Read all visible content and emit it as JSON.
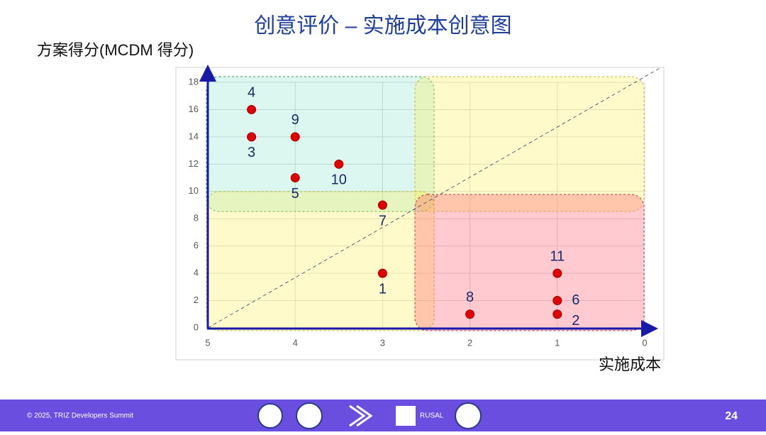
{
  "chart_data": {
    "type": "scatter",
    "title": "创意评价 – 实施成本创意图",
    "y_label": "方案得分(MCDM 得分)",
    "x_label": "实施成本",
    "xlim": [
      5,
      0
    ],
    "xticks": [
      5,
      4,
      3,
      2,
      1,
      0
    ],
    "ylim": [
      0,
      18
    ],
    "yticks": [
      0,
      2,
      4,
      6,
      8,
      10,
      12,
      14,
      16,
      18
    ],
    "grid": true,
    "color": "#e00000",
    "points": [
      {
        "label": "4",
        "x": 4.5,
        "y": 16,
        "label_position": "above"
      },
      {
        "label": "3",
        "x": 4.5,
        "y": 14,
        "label_position": "below"
      },
      {
        "label": "9",
        "x": 4,
        "y": 14,
        "label_position": "above"
      },
      {
        "label": "5",
        "x": 4,
        "y": 11,
        "label_position": "below"
      },
      {
        "label": "10",
        "x": 3.5,
        "y": 12,
        "label_position": "below"
      },
      {
        "label": "7",
        "x": 3,
        "y": 9,
        "label_position": "below"
      },
      {
        "label": "1",
        "x": 3,
        "y": 4,
        "label_position": "below"
      },
      {
        "label": "8",
        "x": 2,
        "y": 1,
        "label_position": "above"
      },
      {
        "label": "11",
        "x": 1,
        "y": 4,
        "label_position": "above"
      },
      {
        "label": "6",
        "x": 1,
        "y": 2,
        "label_position": "right"
      },
      {
        "label": "2",
        "x": 1,
        "y": 1,
        "label_position": "below-right"
      }
    ]
  },
  "footer": {
    "copyright": "© 2025, TRIZ Developers Summit",
    "logo_text": "RUSAL",
    "page_number": "24"
  }
}
